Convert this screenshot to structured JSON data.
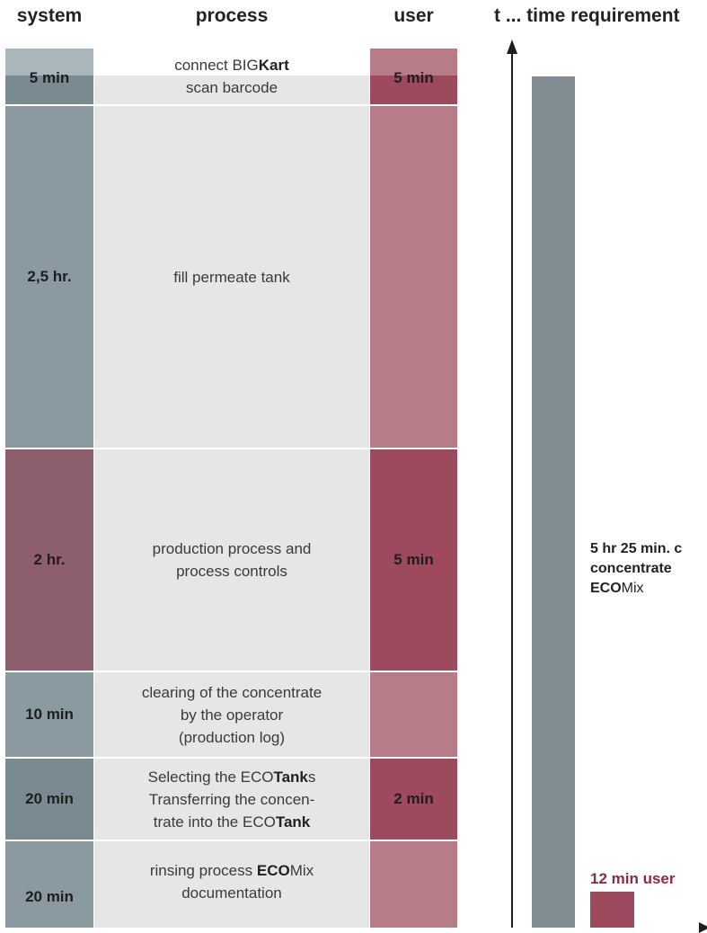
{
  "headers": {
    "system": "system",
    "process": "process",
    "user": "user",
    "time": "t ... time requirement"
  },
  "rows": [
    {
      "system": "5 min",
      "process": [
        [
          {
            "t": "connect BIG"
          },
          {
            "t": "Kart",
            "b": true
          }
        ],
        [
          {
            "t": "scan barcode"
          }
        ]
      ],
      "user": "5 min"
    },
    {
      "system": "2,5 hr.",
      "process": [
        [
          {
            "t": "fill permeate tank"
          }
        ]
      ],
      "user": ""
    },
    {
      "system": "2 hr.",
      "process": [
        [
          {
            "t": "production process and"
          }
        ],
        [
          {
            "t": "process controls"
          }
        ]
      ],
      "user": "5 min"
    },
    {
      "system": "10 min",
      "process": [
        [
          {
            "t": "clearing of the concentrate"
          }
        ],
        [
          {
            "t": "by the operator"
          }
        ],
        [
          {
            "t": "(production log)"
          }
        ]
      ],
      "user": ""
    },
    {
      "system": "20 min",
      "process": [
        [
          {
            "t": "Selecting the ECO"
          },
          {
            "t": "Tank",
            "b": true
          },
          {
            "t": "s"
          }
        ],
        [
          {
            "t": "Transferring the concen-"
          }
        ],
        [
          {
            "t": "trate into the ECO"
          },
          {
            "t": "Tank",
            "b": true
          }
        ]
      ],
      "user": "2 min"
    },
    {
      "system": "20 min",
      "process": [
        [
          {
            "t": "rinsing process "
          },
          {
            "t": "ECO",
            "b": true
          },
          {
            "t": "Mix"
          }
        ],
        [
          {
            "t": "documentation"
          }
        ]
      ],
      "user": ""
    }
  ],
  "total": {
    "line1": "5 hr 25 min. c",
    "line2": "concentrate",
    "line3_bold": "ECO",
    "line3_rest": "Mix"
  },
  "user_total": "12 min user",
  "colors": {
    "system_gray": "#8b9aa1",
    "system_dark_gray": "#7a8a91",
    "system_mauve": "#8d5f6c",
    "user_light": "#b67c87",
    "user_dark": "#9d4a5e",
    "process_bg": "#e6e6e6"
  }
}
